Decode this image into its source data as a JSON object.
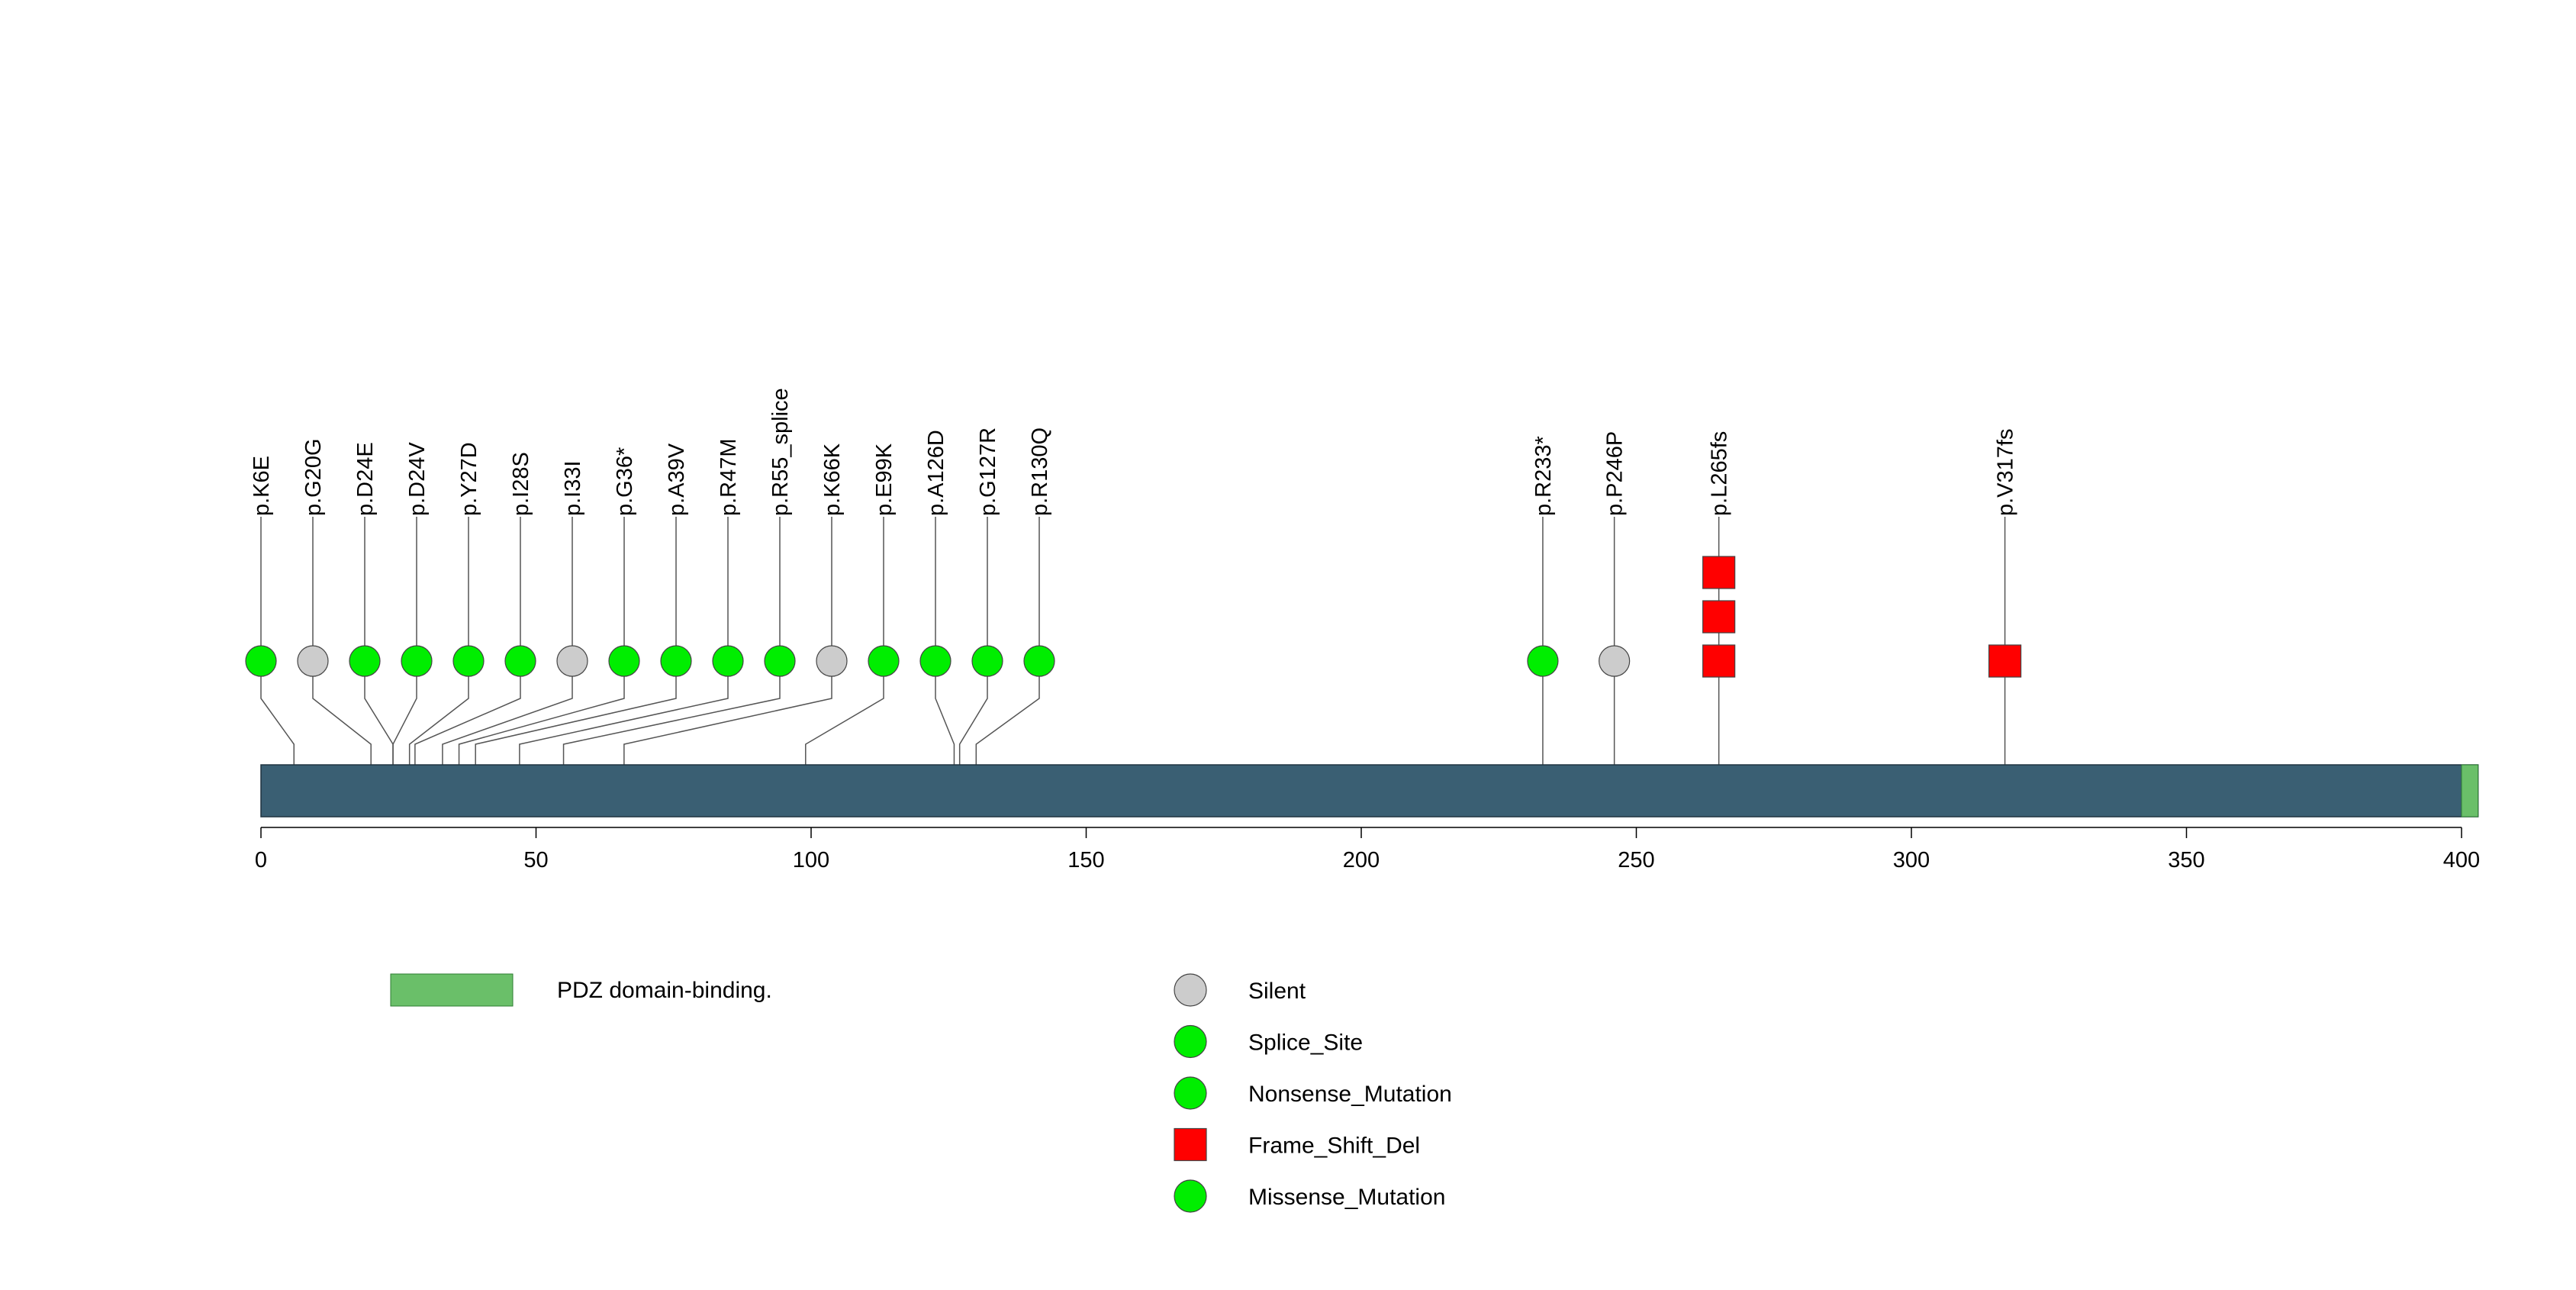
{
  "chart_data": {
    "type": "scatter",
    "subtype": "lollipop-mutation-plot",
    "xlim": [
      0,
      403
    ],
    "x_ticks": [
      0,
      50,
      100,
      150,
      200,
      250,
      300,
      350,
      400
    ],
    "protein_color": "#3a5f73",
    "domains": [
      {
        "name": "PDZ domain-binding.",
        "start": 400,
        "end": 403,
        "color": "#6abf69"
      }
    ],
    "legend_mutation_types": [
      {
        "name": "Silent",
        "shape": "circle",
        "color": "#cccccc"
      },
      {
        "name": "Splice_Site",
        "shape": "circle",
        "color": "#00ee00"
      },
      {
        "name": "Nonsense_Mutation",
        "shape": "circle",
        "color": "#00ee00"
      },
      {
        "name": "Frame_Shift_Del",
        "shape": "square",
        "color": "#ff0000"
      },
      {
        "name": "Missense_Mutation",
        "shape": "circle",
        "color": "#00ee00"
      }
    ],
    "mutations": [
      {
        "label": "p.K6E",
        "position": 6,
        "count": 1,
        "type": "Missense_Mutation"
      },
      {
        "label": "p.G20G",
        "position": 20,
        "count": 1,
        "type": "Silent"
      },
      {
        "label": "p.D24E",
        "position": 24,
        "count": 1,
        "type": "Missense_Mutation"
      },
      {
        "label": "p.D24V",
        "position": 24,
        "count": 1,
        "type": "Missense_Mutation"
      },
      {
        "label": "p.Y27D",
        "position": 27,
        "count": 1,
        "type": "Missense_Mutation"
      },
      {
        "label": "p.I28S",
        "position": 28,
        "count": 1,
        "type": "Missense_Mutation"
      },
      {
        "label": "p.I33I",
        "position": 33,
        "count": 1,
        "type": "Silent"
      },
      {
        "label": "p.G36*",
        "position": 36,
        "count": 1,
        "type": "Nonsense_Mutation"
      },
      {
        "label": "p.A39V",
        "position": 39,
        "count": 1,
        "type": "Missense_Mutation"
      },
      {
        "label": "p.R47M",
        "position": 47,
        "count": 1,
        "type": "Missense_Mutation"
      },
      {
        "label": "p.R55_splice",
        "position": 55,
        "count": 1,
        "type": "Splice_Site"
      },
      {
        "label": "p.K66K",
        "position": 66,
        "count": 1,
        "type": "Silent"
      },
      {
        "label": "p.E99K",
        "position": 99,
        "count": 1,
        "type": "Missense_Mutation"
      },
      {
        "label": "p.A126D",
        "position": 126,
        "count": 1,
        "type": "Missense_Mutation"
      },
      {
        "label": "p.G127R",
        "position": 127,
        "count": 1,
        "type": "Missense_Mutation"
      },
      {
        "label": "p.R130Q",
        "position": 130,
        "count": 1,
        "type": "Missense_Mutation"
      },
      {
        "label": "p.R233*",
        "position": 233,
        "count": 1,
        "type": "Nonsense_Mutation"
      },
      {
        "label": "p.P246P",
        "position": 246,
        "count": 1,
        "type": "Silent"
      },
      {
        "label": "p.L265fs",
        "position": 265,
        "count": 3,
        "type": "Frame_Shift_Del"
      },
      {
        "label": "p.V317fs",
        "position": 317,
        "count": 1,
        "type": "Frame_Shift_Del"
      }
    ]
  }
}
